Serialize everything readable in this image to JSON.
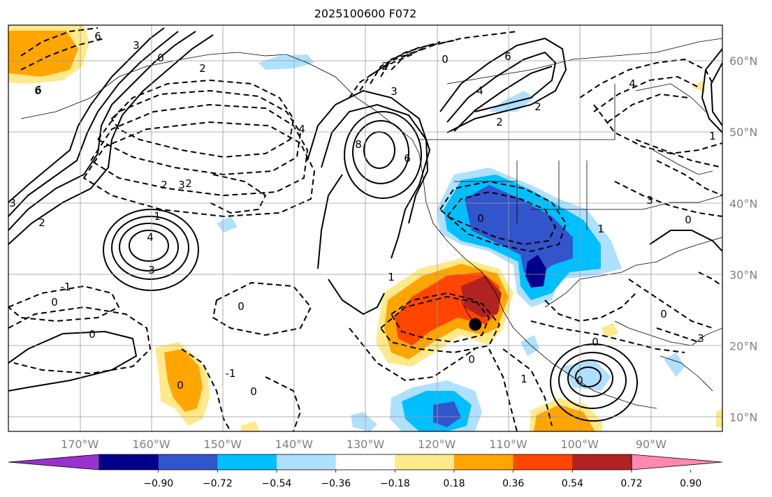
{
  "title": "2025100600 F072",
  "map": {
    "projection": "PlateCarree",
    "extent_lon": [
      -180,
      -80
    ],
    "extent_lat": [
      8,
      65
    ],
    "lon_ticks": [
      -170,
      -160,
      -150,
      -140,
      -130,
      -120,
      -110,
      -100,
      -90
    ],
    "lon_labels": [
      "170°W",
      "160°W",
      "150°W",
      "140°W",
      "130°W",
      "120°W",
      "110°W",
      "100°W",
      "90°W"
    ],
    "lat_ticks": [
      10,
      20,
      30,
      40,
      50,
      60
    ],
    "lat_labels": [
      "10°N",
      "20°N",
      "30°N",
      "40°N",
      "50°N",
      "60°N"
    ],
    "gridlines": true,
    "marker": {
      "lon": -115,
      "lat": 23,
      "color": "#000000"
    }
  },
  "colorbar": {
    "extend": "both",
    "colors": [
      "#9932cc",
      "#00008b",
      "#3355cc",
      "#00bfff",
      "#b0e0ff",
      "#ffffff",
      "#ffe98a",
      "#ffa500",
      "#ff4500",
      "#b22222",
      "#ff88b0"
    ],
    "tick_labels": [
      "−0.90",
      "−0.72",
      "−0.54",
      "−0.36",
      "−0.18",
      "0.18",
      "0.36",
      "0.54",
      "0.72",
      "0.90"
    ]
  },
  "contour_labels": [
    "6",
    "3",
    "6",
    "0",
    "2",
    "3",
    "2",
    "1",
    "2",
    "4",
    "3",
    "0",
    "0",
    "-1",
    "-1",
    "0",
    "0",
    "3",
    "4",
    "8",
    "6",
    "6",
    "4",
    "2",
    "3",
    "2",
    "0",
    "1",
    "2",
    "1",
    "0",
    "1",
    "0",
    "0",
    "3",
    "4",
    "0",
    "1",
    "0",
    "3",
    "6",
    "0",
    "0",
    "2"
  ]
}
